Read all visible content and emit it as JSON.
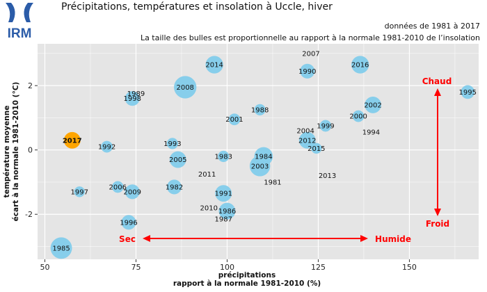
{
  "header": {
    "logo_text": "IRM",
    "title": "Précipitations, températures et insolation à Uccle, hiver",
    "subtitle_period": "données de 1981 à 2017",
    "subtitle_note": "La taille des bulles est proportionnelle au rapport à la normale 1981-2010 de l’insolation"
  },
  "colors": {
    "panel": "#e5e5e5",
    "grid": "#ffffff",
    "bubble": "#87ceeb",
    "highlight_fill": "#ffa500",
    "highlight_text": "#ff0000",
    "annotation": "#ff0000",
    "logo": "#2b5ca8"
  },
  "chart_data": {
    "type": "scatter",
    "xlabel": "précipitations",
    "xlabel2": "rapport à la normale 1981-2010 (%)",
    "ylabel": "température moyenne",
    "ylabel2": "écart à la normale 1981-2010 (°C)",
    "xlim": [
      48,
      169
    ],
    "ylim": [
      -3.4,
      3.3
    ],
    "xticks": [
      50,
      75,
      100,
      125,
      150
    ],
    "yticks": [
      -2,
      0,
      2
    ],
    "grid": true,
    "highlight": "2017",
    "points": [
      {
        "label": "1981",
        "x": 112.5,
        "y": -1.0,
        "size": 0.0
      },
      {
        "label": "1982",
        "x": 85.5,
        "y": -1.15,
        "size": 0.45
      },
      {
        "label": "1983",
        "x": 99.0,
        "y": -0.2,
        "size": 0.28
      },
      {
        "label": "1984",
        "x": 110.0,
        "y": -0.2,
        "size": 0.65
      },
      {
        "label": "1985",
        "x": 54.5,
        "y": -3.05,
        "size": 0.8
      },
      {
        "label": "1986",
        "x": 100.0,
        "y": -1.9,
        "size": 0.55
      },
      {
        "label": "1987",
        "x": 99.0,
        "y": -2.15,
        "size": 0.0
      },
      {
        "label": "1988",
        "x": 109.0,
        "y": 1.25,
        "size": 0.28
      },
      {
        "label": "1989",
        "x": 75.0,
        "y": 1.75,
        "size": 0.0
      },
      {
        "label": "1990",
        "x": 122.0,
        "y": 2.45,
        "size": 0.45
      },
      {
        "label": "1991",
        "x": 99.0,
        "y": -1.35,
        "size": 0.55
      },
      {
        "label": "1992",
        "x": 67.0,
        "y": 0.1,
        "size": 0.3
      },
      {
        "label": "1993",
        "x": 85.0,
        "y": 0.2,
        "size": 0.28
      },
      {
        "label": "1994",
        "x": 139.5,
        "y": 0.55,
        "size": 0.0
      },
      {
        "label": "1995",
        "x": 166.0,
        "y": 1.8,
        "size": 0.4
      },
      {
        "label": "1996",
        "x": 73.0,
        "y": -2.25,
        "size": 0.45
      },
      {
        "label": "1997",
        "x": 59.5,
        "y": -1.3,
        "size": 0.25
      },
      {
        "label": "1998",
        "x": 74.0,
        "y": 1.6,
        "size": 0.45
      },
      {
        "label": "1999",
        "x": 127.0,
        "y": 0.75,
        "size": 0.3
      },
      {
        "label": "2000",
        "x": 136.0,
        "y": 1.05,
        "size": 0.3
      },
      {
        "label": "2001",
        "x": 102.0,
        "y": 0.95,
        "size": 0.3
      },
      {
        "label": "2002",
        "x": 140.0,
        "y": 1.4,
        "size": 0.55
      },
      {
        "label": "2003",
        "x": 109.0,
        "y": -0.5,
        "size": 0.75
      },
      {
        "label": "2004",
        "x": 121.5,
        "y": 0.6,
        "size": 0.0
      },
      {
        "label": "2005",
        "x": 86.5,
        "y": -0.3,
        "size": 0.55
      },
      {
        "label": "2006",
        "x": 70.0,
        "y": -1.15,
        "size": 0.3
      },
      {
        "label": "2007",
        "x": 123.0,
        "y": 3.0,
        "size": 0.0
      },
      {
        "label": "2008",
        "x": 88.5,
        "y": 1.95,
        "size": 0.85
      },
      {
        "label": "2009",
        "x": 74.0,
        "y": -1.3,
        "size": 0.45
      },
      {
        "label": "2010",
        "x": 95.0,
        "y": -1.8,
        "size": 0.0
      },
      {
        "label": "2011",
        "x": 94.5,
        "y": -0.75,
        "size": 0.0
      },
      {
        "label": "2012",
        "x": 122.0,
        "y": 0.3,
        "size": 0.55
      },
      {
        "label": "2013",
        "x": 127.5,
        "y": -0.8,
        "size": 0.0
      },
      {
        "label": "2014",
        "x": 96.5,
        "y": 2.65,
        "size": 0.6
      },
      {
        "label": "2015",
        "x": 124.5,
        "y": 0.05,
        "size": 0.25
      },
      {
        "label": "2016",
        "x": 136.5,
        "y": 2.65,
        "size": 0.6
      },
      {
        "label": "2017",
        "x": 57.5,
        "y": 0.3,
        "size": 0.55
      }
    ],
    "annotations": {
      "chaud": "Chaud",
      "froid": "Froid",
      "sec": "Sec",
      "humide": "Humide"
    }
  }
}
